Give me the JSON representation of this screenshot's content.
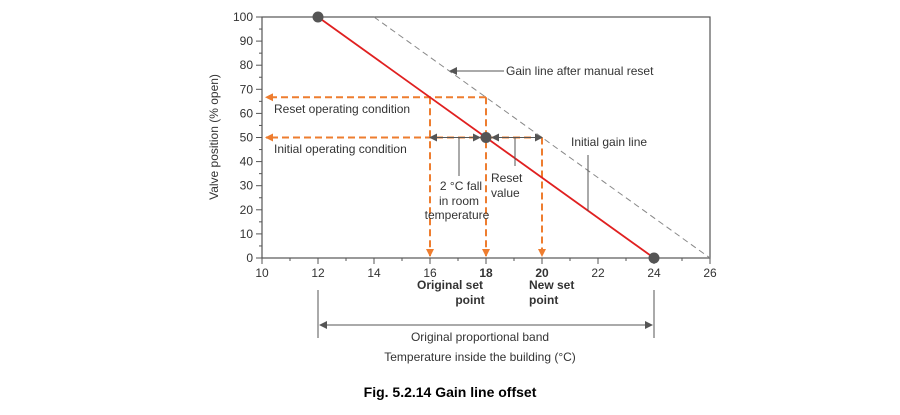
{
  "caption": "Fig. 5.2.14 Gain line offset",
  "chart_data": {
    "type": "line",
    "xlabel": "Temperature inside the building (°C)",
    "ylabel": "Valve position (% open)",
    "xlim": [
      10,
      26
    ],
    "ylim": [
      0,
      100
    ],
    "x_ticks": [
      "10",
      "12",
      "14",
      "16",
      "18",
      "20",
      "22",
      "24",
      "26"
    ],
    "y_ticks": [
      "0",
      "10",
      "20",
      "30",
      "40",
      "50",
      "60",
      "70",
      "80",
      "90",
      "100"
    ],
    "grid": false,
    "series": [
      {
        "name": "Initial gain line",
        "style": "solid",
        "color": "#e02020",
        "points": [
          [
            12,
            100
          ],
          [
            24,
            0
          ]
        ]
      },
      {
        "name": "Gain line after manual reset",
        "style": "dashed",
        "color": "#888888",
        "points": [
          [
            14,
            100
          ],
          [
            26,
            0
          ]
        ]
      }
    ],
    "markers": [
      [
        12,
        100
      ],
      [
        18,
        50
      ],
      [
        24,
        0
      ]
    ],
    "reference_color": "#ee7d2f",
    "reference_lines": {
      "vertical_x": [
        16,
        18,
        20
      ],
      "horizontal_y": [
        66.7,
        50
      ]
    },
    "annotations": {
      "reset_operating": "Reset operating condition",
      "initial_operating": "Initial operating condition",
      "fall_1": "2 °C fall",
      "fall_2": "in room",
      "fall_3": "temperature",
      "reset_value_1": "Reset",
      "reset_value_2": "value",
      "original_set_1": "Original set",
      "original_set_2": "point",
      "new_set_1": "New set",
      "new_set_2": "point",
      "band": "Original proportional band",
      "gain_after_reset": "Gain line after manual reset",
      "initial_gain": "Initial gain line"
    }
  }
}
